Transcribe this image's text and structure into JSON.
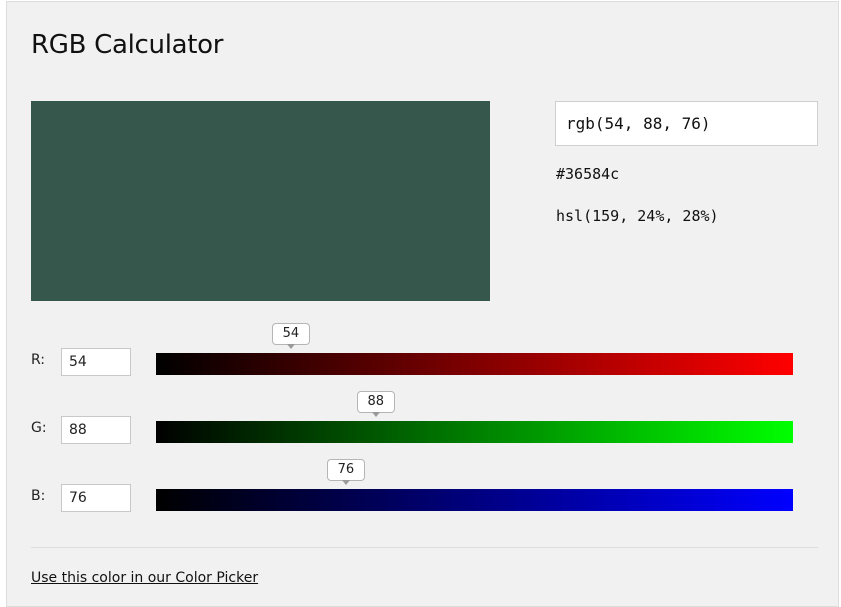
{
  "title": "RGB Calculator",
  "color": {
    "r": 54,
    "g": 88,
    "b": 76,
    "swatch_hex": "#36584c"
  },
  "outputs": {
    "rgb": "rgb(54, 88, 76)",
    "hex": "#36584c",
    "hsl": "hsl(159, 24%, 28%)"
  },
  "channels": [
    {
      "label": "R:",
      "value": "54",
      "max": 255,
      "gradient_end": "#ff0000"
    },
    {
      "label": "G:",
      "value": "88",
      "max": 255,
      "gradient_end": "#00ff00"
    },
    {
      "label": "B:",
      "value": "76",
      "max": 255,
      "gradient_end": "#0000ff"
    }
  ],
  "footer": {
    "link_text": "Use this color in our Color Picker"
  }
}
